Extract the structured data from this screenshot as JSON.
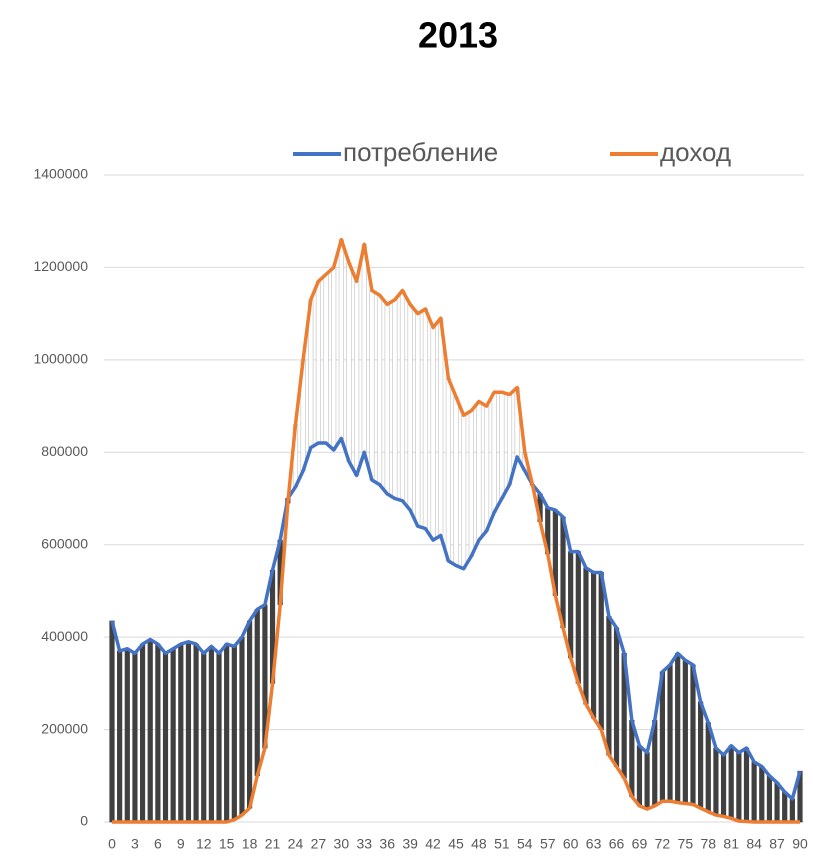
{
  "chart_data": {
    "type": "line",
    "title": "2013",
    "categories": [
      0,
      null,
      null,
      3,
      null,
      null,
      6,
      null,
      null,
      9,
      null,
      null,
      12,
      null,
      null,
      15,
      null,
      null,
      18,
      null,
      null,
      21,
      null,
      null,
      24,
      null,
      null,
      27,
      null,
      null,
      30,
      null,
      null,
      33,
      null,
      null,
      36,
      null,
      null,
      39,
      null,
      null,
      42,
      null,
      null,
      45,
      null,
      null,
      48,
      null,
      null,
      51,
      null,
      null,
      54,
      null,
      null,
      57,
      null,
      null,
      60,
      null,
      null,
      63,
      null,
      null,
      66,
      null,
      null,
      69,
      null,
      null,
      72,
      null,
      null,
      75,
      null,
      null,
      78,
      null,
      null,
      81,
      null,
      null,
      84,
      null,
      null,
      87,
      null,
      null,
      90
    ],
    "series": [
      {
        "name": "потребление",
        "color": "#4472c4",
        "values": [
          435000,
          370000,
          375000,
          365000,
          385000,
          395000,
          385000,
          365000,
          375000,
          385000,
          390000,
          385000,
          365000,
          380000,
          365000,
          385000,
          380000,
          400000,
          435000,
          460000,
          470000,
          545000,
          610000,
          700000,
          725000,
          760000,
          810000,
          820000,
          820000,
          805000,
          830000,
          780000,
          750000,
          800000,
          740000,
          730000,
          710000,
          700000,
          695000,
          675000,
          640000,
          635000,
          610000,
          620000,
          565000,
          555000,
          548000,
          575000,
          610000,
          630000,
          670000,
          700000,
          730000,
          790000,
          760000,
          730000,
          710000,
          680000,
          675000,
          660000,
          585000,
          585000,
          550000,
          540000,
          540000,
          445000,
          420000,
          365000,
          220000,
          165000,
          150000,
          220000,
          325000,
          340000,
          365000,
          350000,
          340000,
          260000,
          215000,
          160000,
          145000,
          165000,
          150000,
          160000,
          130000,
          120000,
          100000,
          85000,
          65000,
          50000,
          110000
        ]
      },
      {
        "name": "доход",
        "color": "#ed7d31",
        "values": [
          0,
          0,
          0,
          0,
          0,
          0,
          0,
          0,
          0,
          0,
          0,
          0,
          0,
          0,
          0,
          0,
          5000,
          15000,
          30000,
          100000,
          160000,
          300000,
          470000,
          690000,
          860000,
          1000000,
          1130000,
          1170000,
          1185000,
          1200000,
          1260000,
          1210000,
          1170000,
          1250000,
          1150000,
          1140000,
          1120000,
          1130000,
          1150000,
          1120000,
          1100000,
          1110000,
          1070000,
          1090000,
          960000,
          920000,
          880000,
          890000,
          910000,
          900000,
          930000,
          930000,
          925000,
          940000,
          800000,
          730000,
          650000,
          580000,
          490000,
          420000,
          355000,
          300000,
          255000,
          225000,
          200000,
          145000,
          120000,
          95000,
          55000,
          35000,
          28000,
          35000,
          45000,
          45000,
          42000,
          40000,
          38000,
          30000,
          22000,
          15000,
          12000,
          8000,
          2000,
          1000,
          0,
          0,
          0,
          0,
          0,
          0,
          0
        ]
      }
    ],
    "up_bar_color": "#ffffff",
    "down_bar_color": "#404040",
    "ylim": [
      0,
      1400000
    ],
    "yticks": [
      0,
      200000,
      400000,
      600000,
      800000,
      1000000,
      1200000,
      1400000
    ],
    "grid": true,
    "legend": "top"
  }
}
